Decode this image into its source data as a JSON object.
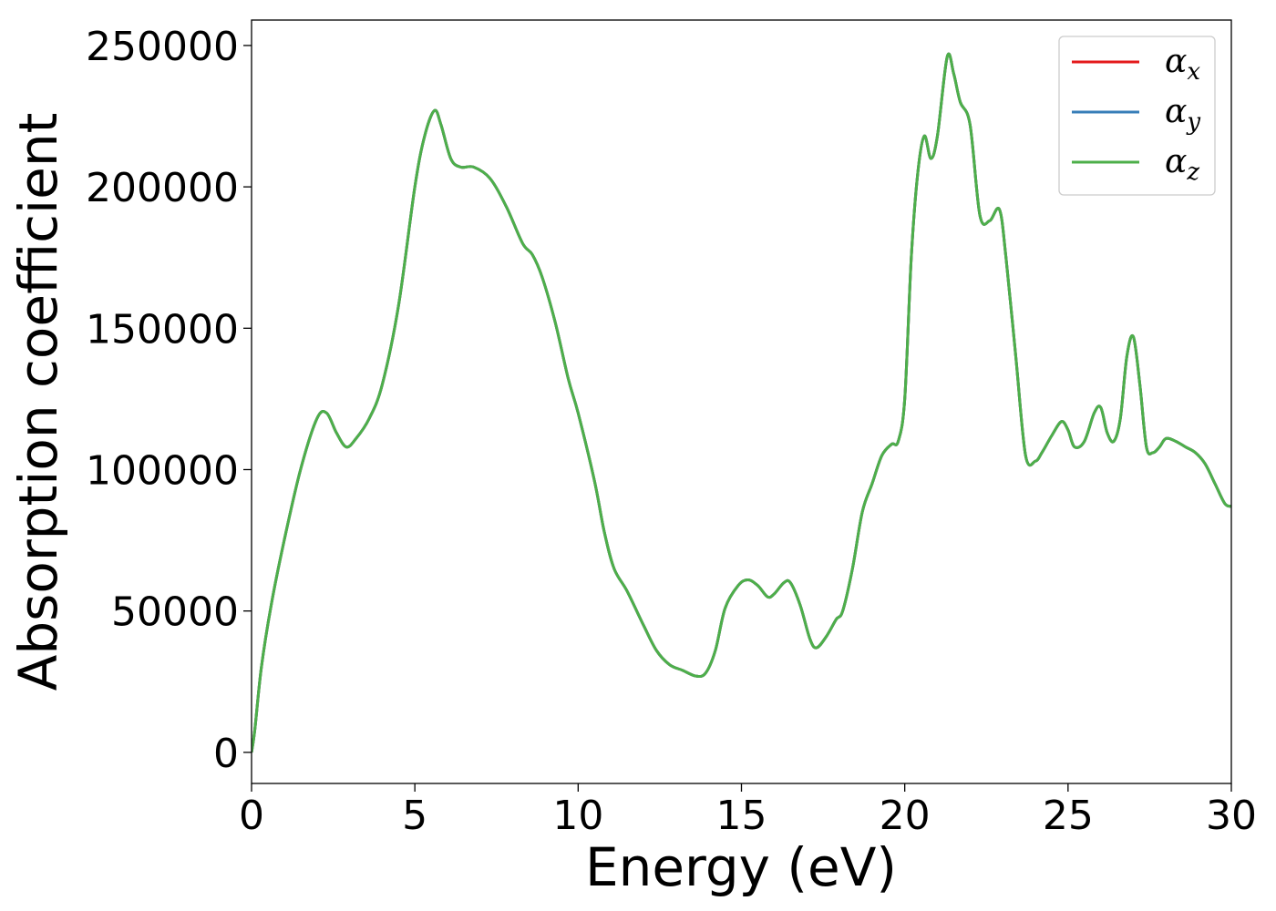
{
  "chart_data": {
    "type": "line",
    "title": "",
    "xlabel": "Energy (eV)",
    "ylabel": "Absorption coefficient",
    "xlim": [
      0,
      30
    ],
    "ylim": [
      -11000,
      259000
    ],
    "xticks": [
      0,
      5,
      10,
      15,
      20,
      25,
      30
    ],
    "xtick_labels": [
      "0",
      "5",
      "10",
      "15",
      "20",
      "25",
      "30"
    ],
    "yticks": [
      0,
      50000,
      100000,
      150000,
      200000,
      250000
    ],
    "ytick_labels": [
      "0",
      "50000",
      "100000",
      "150000",
      "200000",
      "250000"
    ],
    "grid": false,
    "legend_position": "top-right",
    "x": [
      0,
      0.1,
      0.3,
      0.6,
      1.0,
      1.5,
      2.0,
      2.3,
      2.6,
      2.9,
      3.2,
      3.6,
      4.0,
      4.5,
      5.0,
      5.3,
      5.6,
      5.8,
      6.1,
      6.4,
      6.8,
      7.3,
      7.8,
      8.3,
      8.6,
      8.9,
      9.3,
      9.7,
      10.0,
      10.5,
      10.8,
      11.1,
      11.5,
      12.0,
      12.4,
      12.8,
      13.2,
      13.6,
      13.9,
      14.2,
      14.5,
      14.9,
      15.2,
      15.5,
      15.8,
      16.0,
      16.3,
      16.5,
      16.8,
      17.1,
      17.3,
      17.6,
      17.9,
      18.1,
      18.4,
      18.7,
      19.0,
      19.3,
      19.6,
      19.8,
      20.0,
      20.2,
      20.4,
      20.6,
      20.8,
      21.0,
      21.3,
      21.5,
      21.7,
      22.0,
      22.3,
      22.6,
      22.9,
      23.1,
      23.4,
      23.7,
      24.0,
      24.2,
      24.5,
      24.8,
      25.0,
      25.2,
      25.5,
      25.8,
      26.0,
      26.2,
      26.4,
      26.6,
      26.8,
      27.0,
      27.2,
      27.4,
      27.6,
      27.8,
      28.0,
      28.3,
      28.6,
      28.9,
      29.2,
      29.5,
      29.8,
      30.0
    ],
    "series": [
      {
        "name": "αx",
        "name_base": "α",
        "name_sub": "x",
        "color": "#e41a1c",
        "values": [
          0,
          8000,
          30000,
          52000,
          75000,
          100000,
          118000,
          120000,
          113000,
          108000,
          111000,
          118000,
          130000,
          158000,
          200000,
          218000,
          227000,
          222000,
          210000,
          207000,
          207000,
          203000,
          193000,
          180000,
          176000,
          168000,
          152000,
          132000,
          120000,
          96000,
          78000,
          65000,
          57000,
          45000,
          36000,
          31000,
          29000,
          27000,
          28000,
          36000,
          51000,
          59000,
          61000,
          59000,
          55000,
          56000,
          60000,
          60000,
          52000,
          40000,
          37000,
          41000,
          47000,
          50000,
          65000,
          85000,
          95000,
          105000,
          109000,
          110000,
          125000,
          175000,
          205000,
          218000,
          210000,
          218000,
          246000,
          240000,
          230000,
          222000,
          190000,
          188000,
          192000,
          175000,
          140000,
          105000,
          103000,
          106000,
          112000,
          117000,
          114000,
          108000,
          110000,
          120000,
          122000,
          113000,
          110000,
          118000,
          140000,
          147000,
          130000,
          108000,
          106000,
          108000,
          111000,
          110000,
          108000,
          106000,
          102000,
          95000,
          88000,
          87000
        ]
      },
      {
        "name": "αy",
        "name_base": "α",
        "name_sub": "y",
        "color": "#377eb8",
        "values": [
          0,
          8000,
          30000,
          52000,
          75000,
          100000,
          118000,
          120000,
          113000,
          108000,
          111000,
          118000,
          130000,
          158000,
          200000,
          218000,
          227000,
          222000,
          210000,
          207000,
          207000,
          203000,
          193000,
          180000,
          176000,
          168000,
          152000,
          132000,
          120000,
          96000,
          78000,
          65000,
          57000,
          45000,
          36000,
          31000,
          29000,
          27000,
          28000,
          36000,
          51000,
          59000,
          61000,
          59000,
          55000,
          56000,
          60000,
          60000,
          52000,
          40000,
          37000,
          41000,
          47000,
          50000,
          65000,
          85000,
          95000,
          105000,
          109000,
          110000,
          125000,
          175000,
          205000,
          218000,
          210000,
          218000,
          246000,
          240000,
          230000,
          222000,
          190000,
          188000,
          192000,
          175000,
          140000,
          105000,
          103000,
          106000,
          112000,
          117000,
          114000,
          108000,
          110000,
          120000,
          122000,
          113000,
          110000,
          118000,
          140000,
          147000,
          130000,
          108000,
          106000,
          108000,
          111000,
          110000,
          108000,
          106000,
          102000,
          95000,
          88000,
          87000
        ]
      },
      {
        "name": "αz",
        "name_base": "α",
        "name_sub": "z",
        "color": "#4daf4a",
        "values": [
          0,
          8000,
          30000,
          52000,
          75000,
          100000,
          118000,
          120000,
          113000,
          108000,
          111000,
          118000,
          130000,
          158000,
          200000,
          218000,
          227000,
          222000,
          210000,
          207000,
          207000,
          203000,
          193000,
          180000,
          176000,
          168000,
          152000,
          132000,
          120000,
          96000,
          78000,
          65000,
          57000,
          45000,
          36000,
          31000,
          29000,
          27000,
          28000,
          36000,
          51000,
          59000,
          61000,
          59000,
          55000,
          56000,
          60000,
          60000,
          52000,
          40000,
          37000,
          41000,
          47000,
          50000,
          65000,
          85000,
          95000,
          105000,
          109000,
          110000,
          125000,
          175000,
          205000,
          218000,
          210000,
          218000,
          246000,
          240000,
          230000,
          222000,
          190000,
          188000,
          192000,
          175000,
          140000,
          105000,
          103000,
          106000,
          112000,
          117000,
          114000,
          108000,
          110000,
          120000,
          122000,
          113000,
          110000,
          118000,
          140000,
          147000,
          130000,
          108000,
          106000,
          108000,
          111000,
          110000,
          108000,
          106000,
          102000,
          95000,
          88000,
          87000
        ]
      }
    ]
  }
}
